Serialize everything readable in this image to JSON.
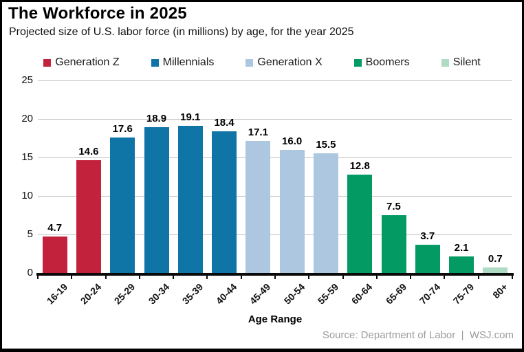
{
  "header": {
    "title": "The Workforce in 2025",
    "subtitle": "Projected size of U.S. labor force (in millions) by age, for the year 2025"
  },
  "footer": {
    "source": "Source: Department of Labor  |  WSJ.com"
  },
  "chart_data": {
    "type": "bar",
    "title": "The Workforce in 2025",
    "subtitle": "Projected size of U.S. labor force (in millions) by age, for the year 2025",
    "xlabel": "Age Range",
    "ylabel": "",
    "ylim": [
      0,
      25
    ],
    "yticks": [
      0,
      5,
      10,
      15,
      20,
      25
    ],
    "grid": true,
    "legend_position": "top",
    "categories": [
      "16-19",
      "20-24",
      "25-29",
      "30-34",
      "35-39",
      "40-44",
      "45-49",
      "50-54",
      "55-59",
      "60-64",
      "65-69",
      "70-74",
      "75-79",
      "80+"
    ],
    "values": [
      4.7,
      14.6,
      17.6,
      18.9,
      19.1,
      18.4,
      17.1,
      16.0,
      15.5,
      12.8,
      7.5,
      3.7,
      2.1,
      0.7
    ],
    "value_labels": [
      "4.7",
      "14.6",
      "17.6",
      "18.9",
      "19.1",
      "18.4",
      "17.1",
      "16.0",
      "15.5",
      "12.8",
      "7.5",
      "3.7",
      "2.1",
      "0.7"
    ],
    "groups": [
      "Generation Z",
      "Generation Z",
      "Millennials",
      "Millennials",
      "Millennials",
      "Millennials",
      "Generation X",
      "Generation X",
      "Generation X",
      "Boomers",
      "Boomers",
      "Boomers",
      "Boomers",
      "Silent"
    ],
    "legend": [
      {
        "label": "Generation Z",
        "color": "#c3223c"
      },
      {
        "label": "Millennials",
        "color": "#0f74a6"
      },
      {
        "label": "Generation X",
        "color": "#adc7e0"
      },
      {
        "label": "Boomers",
        "color": "#049a64"
      },
      {
        "label": "Silent",
        "color": "#afdac3"
      }
    ],
    "colors": {
      "Generation Z": "#c3223c",
      "Millennials": "#0f74a6",
      "Generation X": "#adc7e0",
      "Boomers": "#049a64",
      "Silent": "#afdac3"
    },
    "gridline_color": "#c3c3c3",
    "axis_color": "#0a0a0a"
  }
}
